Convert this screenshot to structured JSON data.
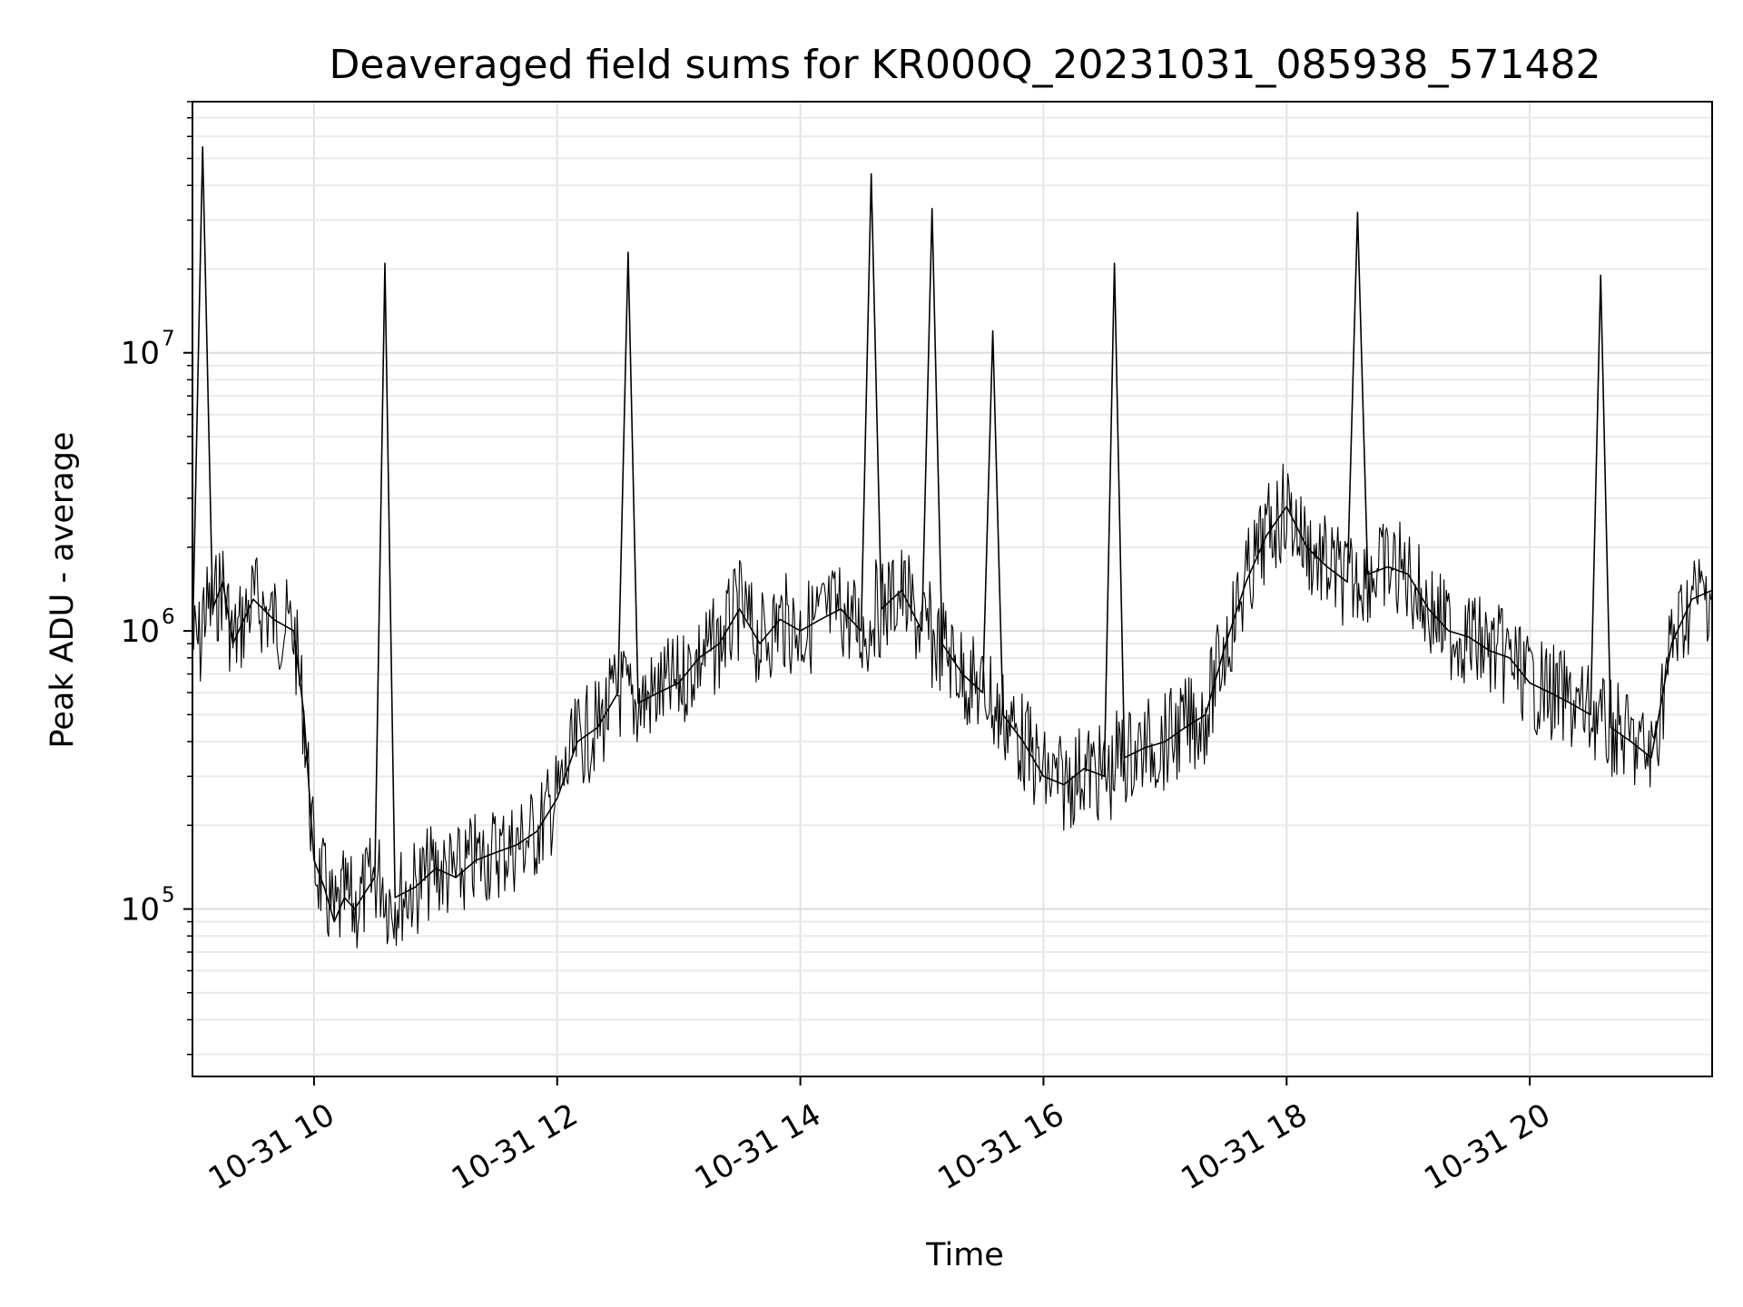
{
  "chart_data": {
    "type": "line",
    "title": "Deaveraged field sums for KR000Q_20231031_085938_571482",
    "xlabel": "Time",
    "ylabel": "Peak ADU - average",
    "yscale": "log",
    "xlim": [
      "2023-10-31T09:00",
      "2023-10-31T21:30"
    ],
    "ylim": [
      25000,
      80000000
    ],
    "x_ticks": [
      {
        "value": "2023-10-31T10:00",
        "label": "10-31 10"
      },
      {
        "value": "2023-10-31T12:00",
        "label": "10-31 12"
      },
      {
        "value": "2023-10-31T14:00",
        "label": "10-31 14"
      },
      {
        "value": "2023-10-31T16:00",
        "label": "10-31 16"
      },
      {
        "value": "2023-10-31T18:00",
        "label": "10-31 18"
      },
      {
        "value": "2023-10-31T20:00",
        "label": "10-31 20"
      }
    ],
    "y_ticks": [
      {
        "value": 100000,
        "base": "10",
        "exp": "5"
      },
      {
        "value": 1000000,
        "base": "10",
        "exp": "6"
      },
      {
        "value": 10000000,
        "base": "10",
        "exp": "7"
      }
    ],
    "grid": true,
    "line_color": "#000000",
    "series": [
      {
        "x": [
          "2023-10-31T09:00",
          "2023-10-31T09:05",
          "2023-10-31T09:10",
          "2023-10-31T09:15",
          "2023-10-31T09:20",
          "2023-10-31T09:30",
          "2023-10-31T09:40",
          "2023-10-31T09:50",
          "2023-10-31T09:55",
          "2023-10-31T10:00",
          "2023-10-31T10:05",
          "2023-10-31T10:10",
          "2023-10-31T10:15",
          "2023-10-31T10:20",
          "2023-10-31T10:30",
          "2023-10-31T10:35",
          "2023-10-31T10:40",
          "2023-10-31T10:50",
          "2023-10-31T11:00",
          "2023-10-31T11:10",
          "2023-10-31T11:20",
          "2023-10-31T11:30",
          "2023-10-31T11:40",
          "2023-10-31T11:50",
          "2023-10-31T12:00",
          "2023-10-31T12:10",
          "2023-10-31T12:20",
          "2023-10-31T12:30",
          "2023-10-31T12:35",
          "2023-10-31T12:40",
          "2023-10-31T12:50",
          "2023-10-31T13:00",
          "2023-10-31T13:10",
          "2023-10-31T13:20",
          "2023-10-31T13:30",
          "2023-10-31T13:40",
          "2023-10-31T13:50",
          "2023-10-31T14:00",
          "2023-10-31T14:10",
          "2023-10-31T14:20",
          "2023-10-31T14:30",
          "2023-10-31T14:35",
          "2023-10-31T14:40",
          "2023-10-31T14:50",
          "2023-10-31T15:00",
          "2023-10-31T15:05",
          "2023-10-31T15:10",
          "2023-10-31T15:20",
          "2023-10-31T15:30",
          "2023-10-31T15:35",
          "2023-10-31T15:40",
          "2023-10-31T15:50",
          "2023-10-31T16:00",
          "2023-10-31T16:10",
          "2023-10-31T16:20",
          "2023-10-31T16:30",
          "2023-10-31T16:35",
          "2023-10-31T16:40",
          "2023-10-31T16:50",
          "2023-10-31T17:00",
          "2023-10-31T17:10",
          "2023-10-31T17:20",
          "2023-10-31T17:30",
          "2023-10-31T17:40",
          "2023-10-31T17:50",
          "2023-10-31T18:00",
          "2023-10-31T18:10",
          "2023-10-31T18:20",
          "2023-10-31T18:30",
          "2023-10-31T18:35",
          "2023-10-31T18:40",
          "2023-10-31T18:50",
          "2023-10-31T19:00",
          "2023-10-31T19:10",
          "2023-10-31T19:20",
          "2023-10-31T19:30",
          "2023-10-31T19:40",
          "2023-10-31T19:50",
          "2023-10-31T20:00",
          "2023-10-31T20:10",
          "2023-10-31T20:20",
          "2023-10-31T20:30",
          "2023-10-31T20:35",
          "2023-10-31T20:40",
          "2023-10-31T20:50",
          "2023-10-31T21:00",
          "2023-10-31T21:10",
          "2023-10-31T21:20",
          "2023-10-31T21:30"
        ],
        "y": [
          900000,
          55000000,
          1200000,
          1500000,
          900000,
          1300000,
          1100000,
          1000000,
          500000,
          150000,
          120000,
          90000,
          110000,
          100000,
          130000,
          21000000,
          110000,
          120000,
          140000,
          130000,
          150000,
          160000,
          170000,
          190000,
          250000,
          400000,
          450000,
          600000,
          23000000,
          550000,
          600000,
          650000,
          800000,
          900000,
          1200000,
          900000,
          1100000,
          1000000,
          1100000,
          1200000,
          1000000,
          44000000,
          1200000,
          1400000,
          1000000,
          33000000,
          900000,
          700000,
          600000,
          12000000,
          500000,
          400000,
          300000,
          280000,
          320000,
          300000,
          21000000,
          350000,
          380000,
          400000,
          450000,
          500000,
          900000,
          1500000,
          2200000,
          2800000,
          2000000,
          1700000,
          1500000,
          32000000,
          1600000,
          1700000,
          1600000,
          1200000,
          1000000,
          950000,
          850000,
          800000,
          650000,
          600000,
          550000,
          500000,
          19000000,
          450000,
          400000,
          350000,
          900000,
          1300000,
          1400000
        ]
      }
    ]
  }
}
